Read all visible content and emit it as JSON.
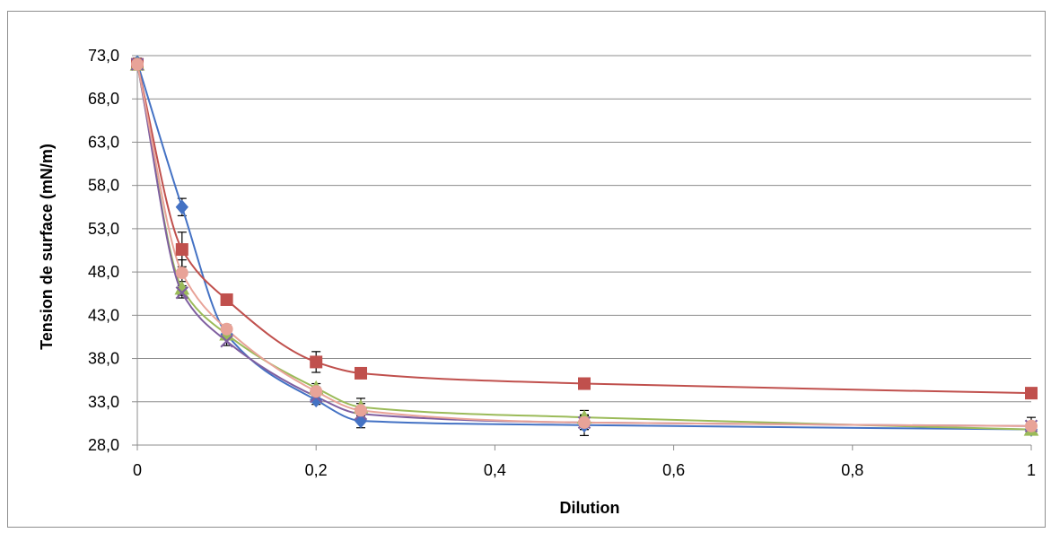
{
  "chart_data": {
    "type": "line",
    "title": "",
    "xlabel": "Dilution",
    "ylabel": "Tension de surface (mN/m)",
    "xlim": [
      0,
      1
    ],
    "ylim": [
      28,
      73
    ],
    "x_ticks": [
      "0",
      "0,2",
      "0,4",
      "0,6",
      "0,8",
      "1"
    ],
    "y_ticks": [
      "28,0",
      "33,0",
      "38,0",
      "43,0",
      "48,0",
      "53,0",
      "58,0",
      "63,0",
      "68,0",
      "73,0"
    ],
    "grid": "horizontal",
    "legend": "none",
    "x": [
      0,
      0.05,
      0.1,
      0.2,
      0.25,
      0.5,
      1
    ],
    "series": [
      {
        "marker": "diamond",
        "color": "#4472C4",
        "values": [
          72.2,
          55.5,
          40.8,
          33.2,
          30.8,
          30.3,
          29.8
        ],
        "errors": [
          0.5,
          1.0,
          0.5,
          0.5,
          0.8,
          1.2,
          0.6
        ]
      },
      {
        "marker": "square",
        "color": "#C0504D",
        "values": [
          72.0,
          50.6,
          44.8,
          37.6,
          36.3,
          35.1,
          34.0
        ],
        "errors": [
          0.5,
          2.0,
          0.5,
          1.2,
          0.5,
          0.5,
          0.5
        ]
      },
      {
        "marker": "triangle",
        "color": "#9BBB59",
        "values": [
          72.0,
          46.1,
          40.8,
          34.6,
          32.4,
          31.2,
          29.8
        ],
        "errors": [
          0.5,
          0.8,
          0.5,
          0.5,
          1.0,
          0.8,
          0.5
        ]
      },
      {
        "marker": "x",
        "color": "#7F5FA0",
        "values": [
          72.0,
          45.6,
          40.0,
          33.6,
          31.6,
          30.6,
          30.2
        ],
        "errors": [
          0.5,
          0.6,
          0.5,
          0.5,
          0.8,
          0.8,
          0.5
        ]
      },
      {
        "marker": "circle",
        "color": "#E8A398",
        "values": [
          72.0,
          47.9,
          41.4,
          34.2,
          32.0,
          30.6,
          30.2
        ],
        "errors": [
          0.5,
          1.5,
          0.5,
          0.5,
          0.8,
          0.8,
          1.0
        ]
      }
    ]
  }
}
